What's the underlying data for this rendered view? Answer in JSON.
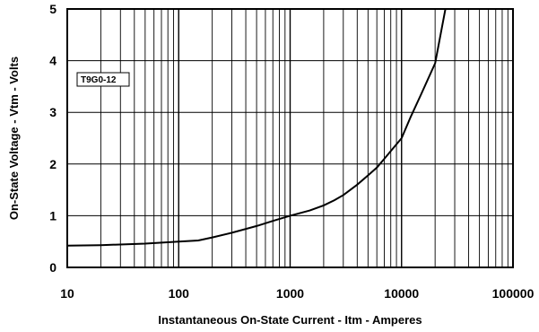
{
  "chart_data": {
    "type": "line",
    "xscale": "log",
    "xlim": [
      10,
      100000
    ],
    "ylim": [
      0,
      5
    ],
    "xticks": [
      10,
      100,
      1000,
      10000,
      100000
    ],
    "xtick_labels": [
      "10",
      "100",
      "1000",
      "10000",
      "100000"
    ],
    "yticks": [
      0,
      1,
      2,
      3,
      4,
      5
    ],
    "ytick_labels": [
      "0",
      "1",
      "2",
      "3",
      "4",
      "5"
    ],
    "xlabel": "Instantaneous On-State Current  -  Itm  -  Amperes",
    "ylabel": "On-State Voltage - Vtm - Volts",
    "grid": true,
    "annotation": "T9G0-12",
    "series": [
      {
        "x": [
          10,
          20,
          50,
          100,
          150,
          200,
          300,
          500,
          700,
          1000,
          1500,
          2000,
          2500,
          3000,
          4000,
          5000,
          6000,
          7000,
          8000,
          10000,
          12000,
          15000,
          20000,
          25000
        ],
        "y": [
          0.42,
          0.43,
          0.46,
          0.5,
          0.52,
          0.58,
          0.67,
          0.8,
          0.9,
          1.0,
          1.1,
          1.2,
          1.3,
          1.4,
          1.6,
          1.78,
          1.93,
          2.1,
          2.25,
          2.5,
          2.9,
          3.35,
          3.95,
          5.05
        ]
      }
    ]
  }
}
